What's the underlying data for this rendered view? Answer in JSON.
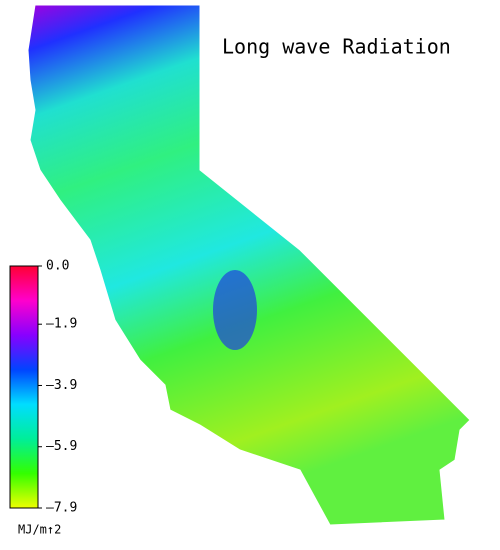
{
  "title": "Long wave Radiation",
  "colorbar": {
    "label": "MJ/m↑2",
    "lim": [
      -7.9,
      0.0
    ],
    "ticks": [
      {
        "value": 0,
        "label": "0.0"
      },
      {
        "value": -1.9,
        "label": "–1.9"
      },
      {
        "value": -3.9,
        "label": "–3.9"
      },
      {
        "value": -5.9,
        "label": "–5.9"
      },
      {
        "value": -7.9,
        "label": "–7.9"
      }
    ],
    "colors": [
      "#eeff00",
      "#33ff00",
      "#00ee99",
      "#00ddff",
      "#0044ff",
      "#8800ff",
      "#ff00cc",
      "#ff0033"
    ]
  }
}
